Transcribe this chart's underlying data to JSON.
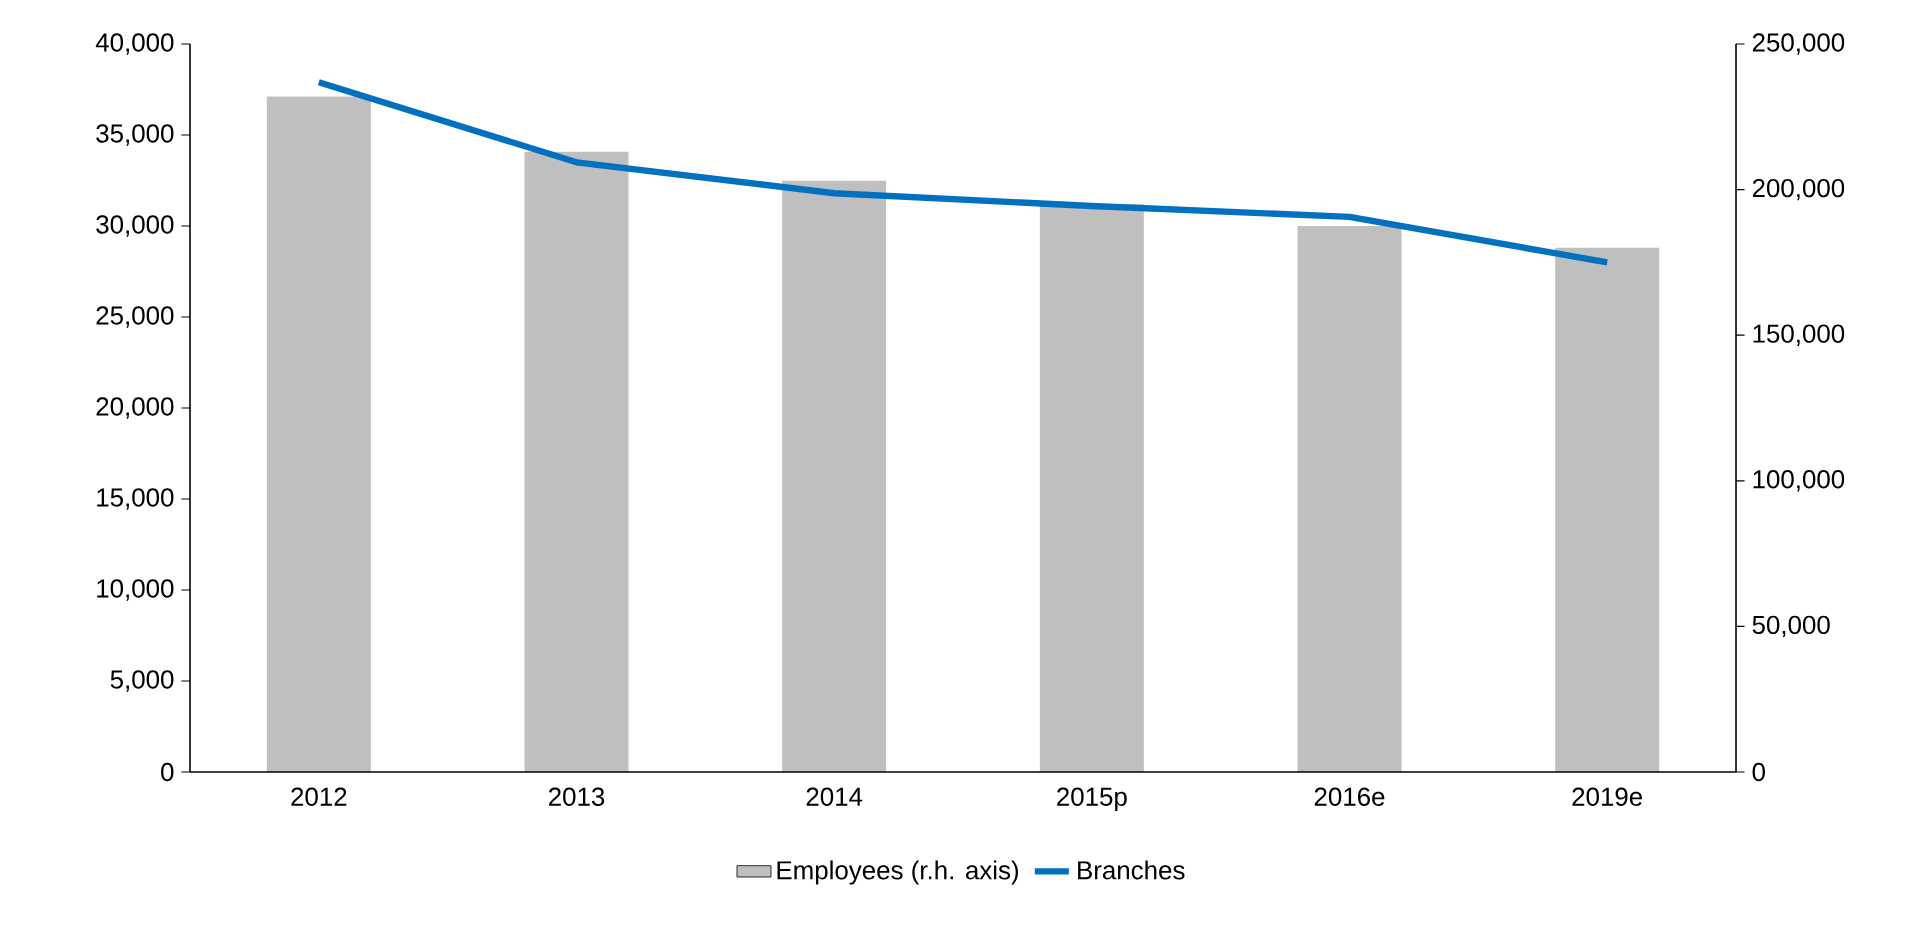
{
  "chart_data": {
    "type": "bar",
    "categories": [
      "2012",
      "2013",
      "2014",
      "2015p",
      "2016e",
      "2019e"
    ],
    "series": [
      {
        "name": "Employees (r.h. axis)",
        "axis": "y2",
        "color": "#bfbfbf",
        "values": [
          232000,
          213000,
          203000,
          195000,
          187500,
          180000
        ]
      },
      {
        "name": "Branches",
        "type": "line",
        "color": "#0070c0",
        "values": [
          37900,
          33500,
          31800,
          31100,
          30500,
          28000
        ]
      }
    ],
    "ylim": [
      0,
      40000
    ],
    "yticks": [
      {
        "value": 0,
        "label": "0"
      },
      {
        "value": 5000,
        "label": "5,000"
      },
      {
        "value": 10000,
        "label": "10,000"
      },
      {
        "value": 15000,
        "label": "15,000"
      },
      {
        "value": 20000,
        "label": "20,000"
      },
      {
        "value": 25000,
        "label": "25,000"
      },
      {
        "value": 30000,
        "label": "30,000"
      },
      {
        "value": 35000,
        "label": "35,000"
      },
      {
        "value": 40000,
        "label": "40,000"
      }
    ],
    "y2lim": [
      0,
      250000
    ],
    "y2ticks": [
      {
        "value": 0,
        "label": "0"
      },
      {
        "value": 50000,
        "label": "50,000"
      },
      {
        "value": 100000,
        "label": "100,000"
      },
      {
        "value": 150000,
        "label": "150,000"
      },
      {
        "value": 200000,
        "label": "200,000"
      },
      {
        "value": 250000,
        "label": "250,000"
      }
    ],
    "legend": "bottom"
  }
}
